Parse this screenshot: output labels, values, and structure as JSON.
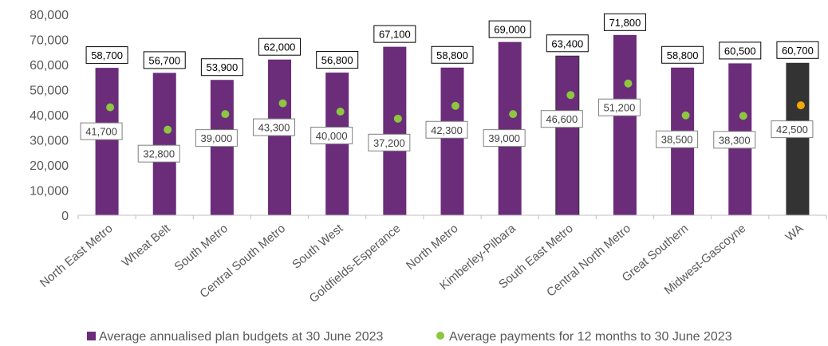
{
  "chart_data": {
    "type": "bar",
    "categories": [
      "North East Metro",
      "Wheat Belt",
      "South Metro",
      "Central South Metro",
      "South West",
      "Goldfields-Esperance",
      "North Metro",
      "Kimberley-Pilbara",
      "South East Metro",
      "Central North Metro",
      "Great Southern",
      "Midwest-Gascoyne",
      "WA"
    ],
    "series": [
      {
        "name": "Average annualised plan budgets at 30 June 2023",
        "values": [
          58700,
          56700,
          53900,
          62000,
          56800,
          67100,
          58800,
          69000,
          63400,
          71800,
          58800,
          60500,
          60700
        ],
        "labels": [
          "58,700",
          "56,700",
          "53,900",
          "62,000",
          "56,800",
          "67,100",
          "58,800",
          "69,000",
          "63,400",
          "71,800",
          "58,800",
          "60,500",
          "60,700"
        ],
        "color": "#6b2c7a",
        "highlight_color": "#333333"
      },
      {
        "name": "Average payments for 12 months to 30 June 2023",
        "values": [
          41700,
          32800,
          39000,
          43300,
          40000,
          37200,
          42300,
          39000,
          46600,
          51200,
          38500,
          38300,
          42500
        ],
        "labels": [
          "41,700",
          "32,800",
          "39,000",
          "43,300",
          "40,000",
          "37,200",
          "42,300",
          "39,000",
          "46,600",
          "51,200",
          "38,500",
          "38,300",
          "42,500"
        ],
        "color": "#8dc63f",
        "highlight_color": "#f5a800"
      }
    ],
    "highlight_category": "WA",
    "ylim": [
      0,
      80000
    ],
    "yticks": [
      "0",
      "10,000",
      "20,000",
      "30,000",
      "40,000",
      "50,000",
      "60,000",
      "70,000",
      "80,000"
    ],
    "grid": false,
    "legend_position": "bottom"
  }
}
